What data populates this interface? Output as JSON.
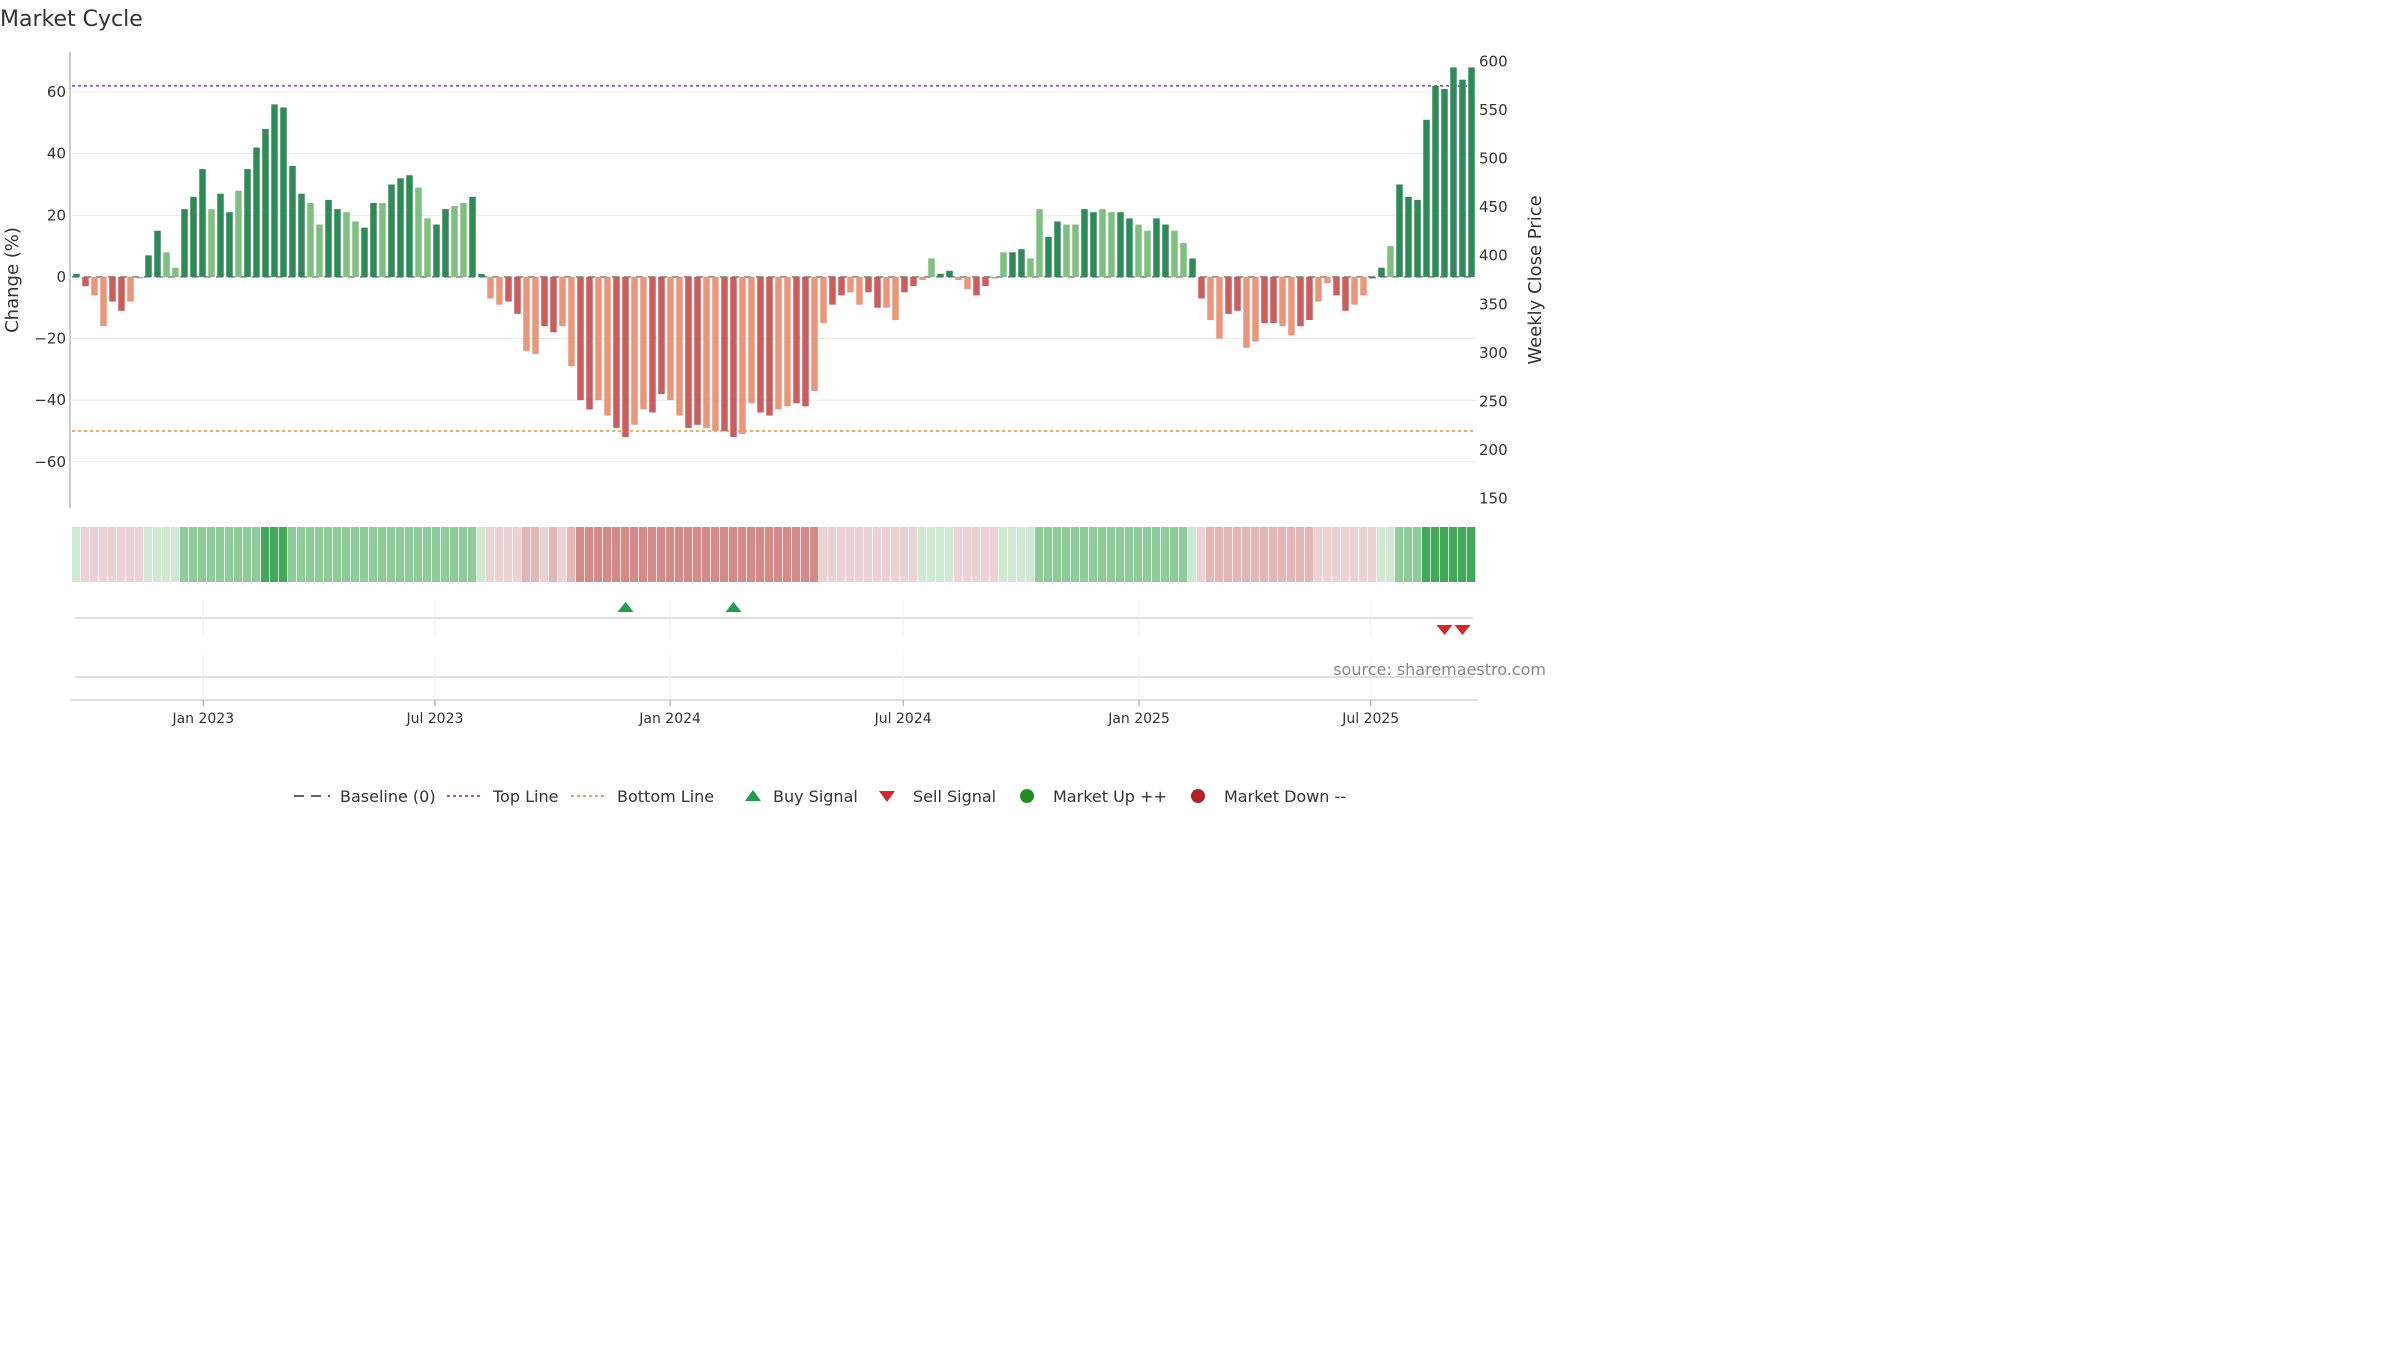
{
  "chart_data": {
    "type": "bar",
    "title": "Market Cycle",
    "ylabel": "Change (%)",
    "y2label": "Weekly Close Price",
    "ylim": [
      -75,
      73
    ],
    "y2lim": [
      140,
      610
    ],
    "yticks": [
      60,
      40,
      20,
      0,
      -20,
      -40,
      -60
    ],
    "ytick_labels": [
      "60",
      "40",
      "20",
      "0",
      "−20",
      "−40",
      "−60"
    ],
    "y2ticks": [
      600,
      550,
      500,
      450,
      400,
      350,
      300,
      250,
      200,
      150
    ],
    "y2tick_labels": [
      "600",
      "550",
      "500",
      "450",
      "400",
      "350",
      "300",
      "250",
      "200",
      "150"
    ],
    "top_line": 62,
    "bottom_line": -50,
    "date_ticks": [
      "Jan 2023",
      "Jul 2023",
      "Jan 2024",
      "Jul 2024",
      "Jan 2025",
      "Jul 2025"
    ],
    "source": "source: sharemaestro.com",
    "colors": {
      "up_strong": "#2e8b57",
      "up_light": "#7fbf7f",
      "down_strong": "#cd5c5c",
      "down_light": "#e9967a",
      "top_line": "#9b59d0",
      "bottom_line": "#f0a050",
      "buy": "#1e9e4a",
      "sell": "#d62728",
      "market_up": "#228b22",
      "market_down": "#b22222"
    },
    "series": [
      {
        "name": "Change (%)",
        "values": [
          1,
          -3,
          -6,
          -16,
          -8,
          -11,
          -8,
          0,
          7,
          15,
          8,
          3,
          22,
          26,
          35,
          22,
          27,
          21,
          28,
          35,
          42,
          48,
          56,
          55,
          36,
          27,
          24,
          17,
          25,
          22,
          21,
          18,
          16,
          24,
          24,
          30,
          32,
          33,
          29,
          19,
          17,
          22,
          23,
          24,
          26,
          1,
          -7,
          -9,
          -8,
          -12,
          -24,
          -25,
          -16,
          -18,
          -16,
          -29,
          -40,
          -43,
          -40,
          -45,
          -49,
          -52,
          -48,
          -43,
          -44,
          -38,
          -40,
          -45,
          -49,
          -48,
          -49,
          -50,
          -50,
          -52,
          -51,
          -41,
          -44,
          -45,
          -43,
          -42,
          -41,
          -42,
          -37,
          -15,
          -9,
          -6,
          -5,
          -9,
          -5,
          -10,
          -10,
          -14,
          -5,
          -3,
          -1,
          6,
          1,
          2,
          -1,
          -4,
          -6,
          -3,
          0,
          8,
          8,
          9,
          6,
          22,
          13,
          18,
          17,
          17,
          22,
          21,
          22,
          21,
          21,
          19,
          17,
          15,
          19,
          17,
          15,
          11,
          6,
          -7,
          -14,
          -20,
          -12,
          -11,
          -23,
          -21,
          -15,
          -15,
          -16,
          -19,
          -16,
          -14,
          -8,
          -2,
          -6,
          -11,
          -9,
          -6,
          0,
          3,
          10,
          30,
          26,
          25,
          51,
          62,
          61,
          68,
          64,
          68
        ]
      },
      {
        "name": "Market strength",
        "values": [
          1,
          -1,
          -1,
          -1,
          -1,
          -1,
          -1,
          -1,
          1,
          1,
          1,
          1,
          2,
          2,
          2,
          2,
          2,
          2,
          2,
          2,
          2,
          3,
          3,
          3,
          2,
          2,
          2,
          2,
          2,
          2,
          2,
          2,
          2,
          2,
          2,
          2,
          2,
          2,
          2,
          2,
          2,
          2,
          2,
          2,
          2,
          1,
          -1,
          -1,
          -1,
          -1,
          -2,
          -2,
          -1,
          -2,
          -1,
          -2,
          -3,
          -3,
          -3,
          -3,
          -3,
          -3,
          -3,
          -3,
          -3,
          -3,
          -3,
          -3,
          -3,
          -3,
          -3,
          -3,
          -3,
          -3,
          -3,
          -3,
          -3,
          -3,
          -3,
          -3,
          -3,
          -3,
          -3,
          -1,
          -1,
          -1,
          -1,
          -1,
          -1,
          -1,
          -1,
          -1,
          -1,
          -1,
          1,
          1,
          1,
          1,
          -1,
          -1,
          -1,
          -1,
          -1,
          1,
          1,
          1,
          1,
          2,
          2,
          2,
          2,
          2,
          2,
          2,
          2,
          2,
          2,
          2,
          2,
          2,
          2,
          2,
          2,
          2,
          1,
          -1,
          -2,
          -2,
          -2,
          -2,
          -2,
          -2,
          -2,
          -2,
          -2,
          -2,
          -2,
          -2,
          -1,
          -1,
          -1,
          -1,
          -1,
          -1,
          -1,
          1,
          1,
          2,
          2,
          2,
          3,
          3,
          3,
          3,
          3,
          3
        ]
      }
    ],
    "buy_signals": [
      61,
      73
    ],
    "sell_signals": [
      152,
      154
    ],
    "legend": [
      {
        "label": "Baseline (0)",
        "symbol": "dash-line",
        "color": "#666666"
      },
      {
        "label": "Top Line",
        "symbol": "dotted-line",
        "color": "#9b59d0"
      },
      {
        "label": "Bottom Line",
        "symbol": "dotted-line",
        "color": "#f0a050"
      },
      {
        "label": "Buy Signal",
        "symbol": "triangle-up",
        "color": "#1e9e4a"
      },
      {
        "label": "Sell Signal",
        "symbol": "triangle-down",
        "color": "#d62728"
      },
      {
        "label": "Market Up ++",
        "symbol": "circle",
        "color": "#228b22"
      },
      {
        "label": "Market Down --",
        "symbol": "circle",
        "color": "#b22222"
      }
    ]
  }
}
